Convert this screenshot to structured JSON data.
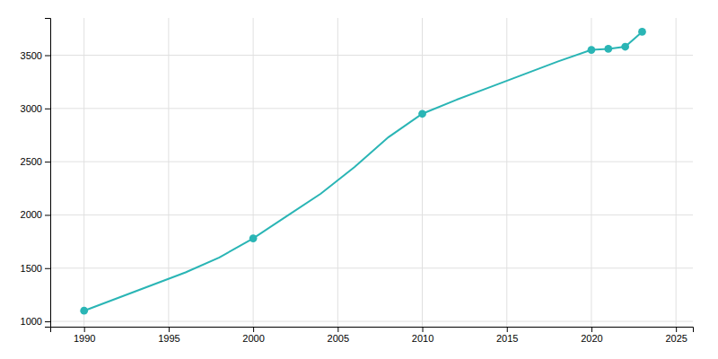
{
  "chart_data": {
    "type": "line",
    "series": [
      {
        "type": "line",
        "color": "#2ab5b5",
        "x": [
          1990,
          1992,
          1994,
          1996,
          1998,
          2000,
          2002,
          2004,
          2006,
          2008,
          2010,
          2012,
          2014,
          2016,
          2018,
          2020,
          2021,
          2022,
          2023
        ],
        "values": [
          1100,
          1220,
          1340,
          1460,
          1600,
          1780,
          1990,
          2200,
          2450,
          2730,
          2950,
          3080,
          3200,
          3320,
          3440,
          3550,
          3560,
          3580,
          3720
        ]
      },
      {
        "type": "scatter",
        "color": "#2ab5b5",
        "marker": "circle",
        "x": [
          1990,
          2000,
          2010,
          2020,
          2021,
          2022,
          2023
        ],
        "values": [
          1100,
          1780,
          2950,
          3550,
          3560,
          3580,
          3720
        ]
      }
    ],
    "xlim": [
      1988,
      2026
    ],
    "ylim": [
      950,
      3850
    ],
    "xticks": [
      1990,
      1995,
      2000,
      2005,
      2010,
      2015,
      2020,
      2025
    ],
    "yticks": [
      1000,
      1500,
      2000,
      2500,
      3000,
      3500
    ],
    "grid": true
  }
}
